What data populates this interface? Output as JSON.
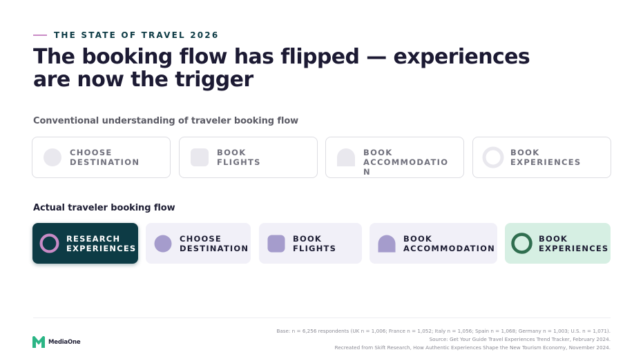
{
  "header": {
    "eyebrow": "THE STATE OF TRAVEL 2026",
    "title_lines": [
      "The booking flow has flipped — experiences",
      "are now the trigger"
    ]
  },
  "conventional": {
    "label": "Conventional understanding of traveler booking flow",
    "steps": [
      {
        "lines": [
          "CHOOSE",
          "DESTINATION"
        ],
        "icon": "circle-icon"
      },
      {
        "lines": [
          "BOOK",
          "FLIGHTS"
        ],
        "icon": "rounded-square-icon"
      },
      {
        "lines": [
          "BOOK",
          "ACCOMMODATIO",
          "N"
        ],
        "icon": "arch-icon"
      },
      {
        "lines": [
          "BOOK",
          "EXPERIENCES"
        ],
        "icon": "ring-icon"
      }
    ]
  },
  "actual": {
    "label": "Actual traveler booking flow",
    "steps": [
      {
        "lines": [
          "RESEARCH",
          "EXPERIENCES"
        ],
        "icon": "ring-icon"
      },
      {
        "lines": [
          "CHOOSE",
          "DESTINATION"
        ],
        "icon": "circle-icon"
      },
      {
        "lines": [
          "BOOK",
          "FLIGHTS"
        ],
        "icon": "rounded-square-icon"
      },
      {
        "lines": [
          "BOOK",
          "ACCOMMODATION"
        ],
        "icon": "arch-icon"
      },
      {
        "lines": [
          "BOOK",
          "EXPERIENCES"
        ],
        "icon": "ring-icon"
      }
    ]
  },
  "colors": {
    "dark_teal": "#0d3b45",
    "pink_accent": "#c98bc6",
    "lavender_icon": "#a59ccc",
    "lavender_card": "#f1f0f8",
    "mint_card": "#d6efe3",
    "green_ring": "#2f6e4f",
    "muted_icon": "#e9e8ee"
  },
  "footer": {
    "logo_text": "MediaOne",
    "notes": [
      "Base: n = 6,256 respondents (UK n = 1,006; France n = 1,052; Italy n = 1,056; Spain n = 1,068; Germany n = 1,003; U.S. n = 1,071).",
      "Source: Get Your Guide Travel Experiences Trend Tracker, February 2024.",
      "Recreated from Skift Research, How Authentic Experiences Shape the New Tourism Economy, November 2024."
    ]
  }
}
